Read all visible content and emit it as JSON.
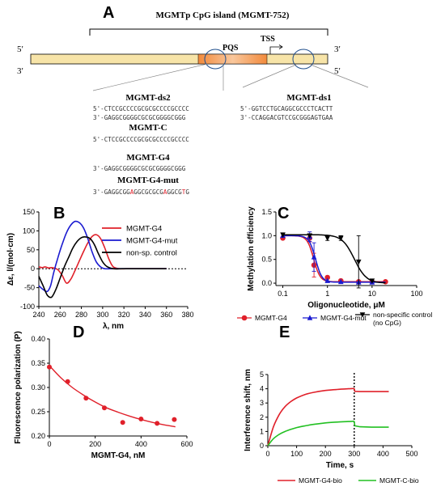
{
  "figure": {
    "panel_labels": [
      "A",
      "B",
      "C",
      "D",
      "E"
    ]
  },
  "panel_a": {
    "title": "MGMTp CpG island (MGMT-752)",
    "strand_labels": {
      "top_left": "5′",
      "bottom_left": "3′",
      "top_right": "3′",
      "bottom_right": "5′"
    },
    "pqs_label": "PQS",
    "tss_label": "TSS",
    "ds2": {
      "name": "MGMT-ds2",
      "top": "5'-CTCCGCCCCGCGCGCCCCGCCCC",
      "bottom": "3'-GAGGCGGGGCGCGCGGGGCGGG"
    },
    "mgmt_c": {
      "name": "MGMT-C",
      "seq": "5'-CTCCGCCCCGCGCGCCCCGCCCC"
    },
    "mgmt_g4": {
      "name": "MGMT-G4",
      "seq": "3'-GAGGCGGGGCGCGCGGGGCGGG"
    },
    "mgmt_g4_mut": {
      "name": "MGMT-G4-mut",
      "seq_parts": [
        "3'-GAGGCGG",
        "A",
        "GGCGCGCG",
        "A",
        "GGCG",
        "T",
        "G"
      ]
    },
    "ds1": {
      "name": "MGMT-ds1",
      "top": "5'-GGTCCTGCAGGCGCCCTCACTT",
      "bottom": "3'-CCAGGACGTCCGCGGGAGTGAA"
    }
  },
  "colors": {
    "red": "#e0202a",
    "blue": "#1a1ad0",
    "black": "#000000",
    "green": "#22c022",
    "orange": "#f28a3c",
    "bar_fill": "#f7e4a8"
  },
  "chart_data": [
    {
      "id": "B",
      "type": "line",
      "xlabel": "λ, nm",
      "ylabel": "Δε, l/(mol·cm)",
      "xlim": [
        240,
        380
      ],
      "ylim": [
        -100,
        150
      ],
      "xticks": [
        240,
        260,
        280,
        300,
        320,
        340,
        360,
        380
      ],
      "yticks": [
        -100,
        -50,
        0,
        50,
        100,
        150
      ],
      "legend": "top-right",
      "series": [
        {
          "name": "MGMT-G4",
          "color": "#e0202a",
          "x": [
            240,
            243,
            246,
            249,
            252,
            255,
            258,
            262,
            266,
            270,
            274,
            278,
            282,
            286,
            290,
            294,
            298,
            302,
            306,
            310,
            316,
            322,
            330,
            340,
            350,
            360
          ],
          "y": [
            5,
            3,
            5,
            2,
            3,
            1,
            -3,
            -18,
            -38,
            -28,
            -5,
            20,
            45,
            68,
            85,
            90,
            80,
            55,
            25,
            5,
            0,
            0,
            0,
            0,
            0,
            0
          ]
        },
        {
          "name": "MGMT-G4-mut",
          "color": "#1a1ad0",
          "x": [
            240,
            244,
            248,
            251,
            254,
            258,
            262,
            266,
            270,
            274,
            278,
            282,
            286,
            290,
            294,
            298,
            302,
            308,
            316,
            324,
            332,
            340,
            350,
            360
          ],
          "y": [
            -45,
            -55,
            -60,
            -45,
            -10,
            30,
            65,
            95,
            115,
            125,
            122,
            108,
            80,
            45,
            18,
            5,
            0,
            0,
            0,
            0,
            0,
            0,
            0,
            0
          ]
        },
        {
          "name": "non-sp. control",
          "color": "#000000",
          "x": [
            240,
            244,
            248,
            252,
            256,
            260,
            264,
            268,
            272,
            276,
            280,
            284,
            288,
            292,
            296,
            300,
            304,
            310,
            318,
            326,
            340,
            350,
            360
          ],
          "y": [
            -20,
            -45,
            -70,
            -75,
            -55,
            -25,
            5,
            30,
            55,
            72,
            82,
            84,
            80,
            65,
            40,
            18,
            6,
            0,
            0,
            0,
            0,
            0,
            0
          ]
        }
      ]
    },
    {
      "id": "C",
      "type": "scatter",
      "xlabel": "Oligonucleotide, μM",
      "ylabel": "Methylation efficiency",
      "xscale": "log",
      "xlim": [
        0.07,
        100
      ],
      "ylim": [
        -0.05,
        1.5
      ],
      "xticks": [
        0.1,
        1,
        10,
        100
      ],
      "yticks": [
        0.0,
        0.5,
        1.0,
        1.5
      ],
      "legend": "bottom",
      "series": [
        {
          "name": "MGMT-G4",
          "color": "#e0202a",
          "marker": "circle",
          "x": [
            0.1,
            0.4,
            0.5,
            1,
            2,
            5,
            10,
            20
          ],
          "y": [
            0.95,
            0.95,
            0.38,
            0.12,
            0.05,
            0.03,
            0.03,
            0.03
          ],
          "err": [
            0.02,
            0.08,
            0.25,
            0.02,
            0.01,
            0.01,
            0.01,
            0.01
          ]
        },
        {
          "name": "MGMT-G4-mut",
          "color": "#1a1ad0",
          "marker": "triangle-up",
          "x": [
            0.1,
            0.4,
            0.5,
            1,
            2,
            5,
            10
          ],
          "y": [
            1.0,
            0.98,
            0.55,
            0.05,
            0.03,
            0.02,
            0.02
          ],
          "err": [
            0.02,
            0.1,
            0.3,
            0.02,
            0.01,
            0.01,
            0.01
          ]
        },
        {
          "name": "non-specific control (no CpG)",
          "color": "#000000",
          "marker": "triangle-down",
          "x": [
            0.1,
            0.4,
            1,
            2,
            5,
            10
          ],
          "y": [
            1.02,
            1.0,
            0.95,
            0.95,
            0.45,
            0.05
          ],
          "err": [
            0.02,
            0.02,
            0.05,
            0.05,
            0.55,
            0.02
          ]
        }
      ]
    },
    {
      "id": "D",
      "type": "scatter",
      "xlabel": "MGMT-G4, nM",
      "ylabel": "Fluorescence polarization (P)",
      "xlim": [
        0,
        600
      ],
      "ylim": [
        0.2,
        0.4
      ],
      "xticks": [
        0,
        200,
        400,
        600
      ],
      "yticks": [
        0.2,
        0.25,
        0.3,
        0.35,
        0.4
      ],
      "series": [
        {
          "name": "",
          "color": "#e0202a",
          "x": [
            0,
            80,
            160,
            240,
            320,
            400,
            470,
            545
          ],
          "y": [
            0.342,
            0.312,
            0.278,
            0.258,
            0.228,
            0.235,
            0.226,
            0.234
          ]
        }
      ],
      "fit": {
        "color": "#e0202a",
        "x": [
          0,
          50,
          100,
          150,
          200,
          250,
          300,
          350,
          400,
          450,
          500,
          550
        ],
        "y": [
          0.345,
          0.32,
          0.3,
          0.284,
          0.27,
          0.258,
          0.249,
          0.241,
          0.234,
          0.228,
          0.223,
          0.219
        ]
      }
    },
    {
      "id": "E",
      "type": "line",
      "xlabel": "Time, s",
      "ylabel": "Interference shift, nm",
      "xlim": [
        0,
        500
      ],
      "ylim": [
        0,
        5
      ],
      "xticks": [
        0,
        100,
        200,
        300,
        400,
        500
      ],
      "yticks": [
        0,
        1,
        2,
        3,
        4,
        5
      ],
      "legend": "bottom",
      "vline_x": 300,
      "series": [
        {
          "name": "MGMT-G4-bio",
          "color": "#e0202a",
          "x": [
            0,
            20,
            40,
            60,
            80,
            100,
            130,
            160,
            200,
            240,
            280,
            300,
            302,
            320,
            360,
            420
          ],
          "y": [
            0,
            1.35,
            2.2,
            2.75,
            3.1,
            3.35,
            3.6,
            3.75,
            3.88,
            3.95,
            4.0,
            4.02,
            3.82,
            3.8,
            3.8,
            3.8
          ]
        },
        {
          "name": "MGMT-C-bio",
          "color": "#22c022",
          "x": [
            0,
            20,
            40,
            60,
            80,
            100,
            130,
            160,
            200,
            240,
            280,
            300,
            302,
            320,
            360,
            420
          ],
          "y": [
            0,
            0.5,
            0.8,
            1.0,
            1.15,
            1.27,
            1.4,
            1.5,
            1.6,
            1.66,
            1.7,
            1.72,
            1.4,
            1.33,
            1.3,
            1.3
          ]
        }
      ]
    }
  ]
}
